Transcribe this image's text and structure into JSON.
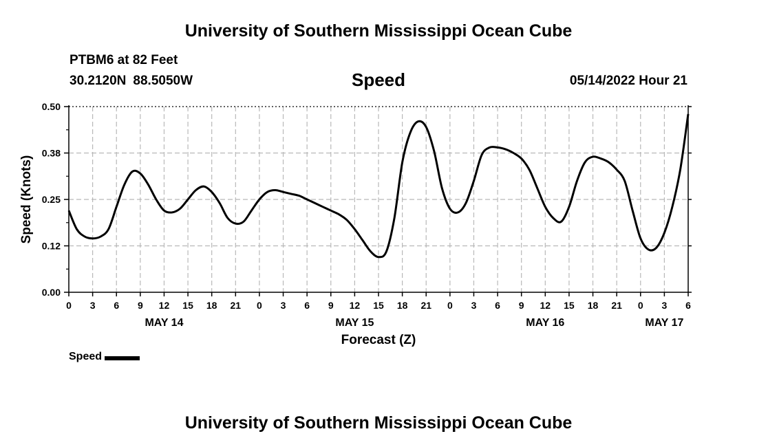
{
  "header": {
    "title": "University of Southern Mississippi Ocean Cube",
    "station": "PTBM6 at 82 Feet",
    "latitude": "30.2120N",
    "longitude": "88.5050W",
    "chart_title": "Speed",
    "timestamp": "05/14/2022 Hour 21"
  },
  "legend": {
    "label": "Speed"
  },
  "footer": {
    "title": "University of Southern Mississippi Ocean Cube"
  },
  "chart_data": {
    "type": "line",
    "title": "Speed",
    "xlabel": "Forecast (Z)",
    "ylabel": "Speed (Knots)",
    "ylim": [
      0,
      0.5
    ],
    "xlim": [
      0,
      78
    ],
    "x_unit": "hours since May 14 00Z",
    "grid": true,
    "y_ticks": [
      0,
      0.125,
      0.25,
      0.375,
      0.5
    ],
    "y_tick_labels": [
      "0.00",
      "0.12",
      "0.25",
      "0.38",
      "0.50"
    ],
    "x_ticks": [
      0,
      3,
      6,
      9,
      12,
      15,
      18,
      21,
      24,
      27,
      30,
      33,
      36,
      39,
      42,
      45,
      48,
      51,
      54,
      57,
      60,
      63,
      66,
      69,
      72,
      75,
      78
    ],
    "x_tick_labels": [
      "0",
      "3",
      "6",
      "9",
      "12",
      "15",
      "18",
      "21",
      "0",
      "3",
      "6",
      "9",
      "12",
      "15",
      "18",
      "21",
      "0",
      "3",
      "6",
      "9",
      "12",
      "15",
      "18",
      "21",
      "0",
      "3",
      "6"
    ],
    "date_labels": [
      {
        "x": 12,
        "label": "MAY 14"
      },
      {
        "x": 36,
        "label": "MAY 15"
      },
      {
        "x": 60,
        "label": "MAY 16"
      },
      {
        "x": 75,
        "label": "MAY 17"
      }
    ],
    "series": [
      {
        "name": "Speed",
        "x": [
          0,
          1,
          2,
          3,
          4,
          5,
          6,
          7,
          8,
          9,
          10,
          11,
          12,
          13,
          14,
          15,
          16,
          17,
          18,
          19,
          20,
          21,
          22,
          23,
          24,
          25,
          26,
          27,
          28,
          29,
          30,
          31,
          32,
          33,
          34,
          35,
          36,
          37,
          38,
          39,
          40,
          41,
          42,
          43,
          44,
          45,
          46,
          47,
          48,
          49,
          50,
          51,
          52,
          53,
          54,
          55,
          56,
          57,
          58,
          59,
          60,
          61,
          62,
          63,
          64,
          65,
          66,
          67,
          68,
          69,
          70,
          71,
          72,
          73,
          74,
          75,
          76,
          77,
          78
        ],
        "values": [
          0.22,
          0.17,
          0.15,
          0.145,
          0.15,
          0.17,
          0.23,
          0.29,
          0.325,
          0.32,
          0.29,
          0.25,
          0.22,
          0.215,
          0.225,
          0.25,
          0.275,
          0.285,
          0.27,
          0.24,
          0.2,
          0.185,
          0.19,
          0.22,
          0.25,
          0.27,
          0.275,
          0.27,
          0.265,
          0.26,
          0.25,
          0.24,
          0.23,
          0.22,
          0.21,
          0.195,
          0.17,
          0.14,
          0.11,
          0.095,
          0.11,
          0.2,
          0.35,
          0.43,
          0.46,
          0.445,
          0.38,
          0.28,
          0.225,
          0.215,
          0.24,
          0.3,
          0.37,
          0.39,
          0.39,
          0.385,
          0.375,
          0.36,
          0.33,
          0.28,
          0.23,
          0.2,
          0.19,
          0.23,
          0.3,
          0.35,
          0.365,
          0.36,
          0.35,
          0.33,
          0.3,
          0.22,
          0.145,
          0.115,
          0.12,
          0.16,
          0.23,
          0.33,
          0.48
        ]
      }
    ]
  }
}
